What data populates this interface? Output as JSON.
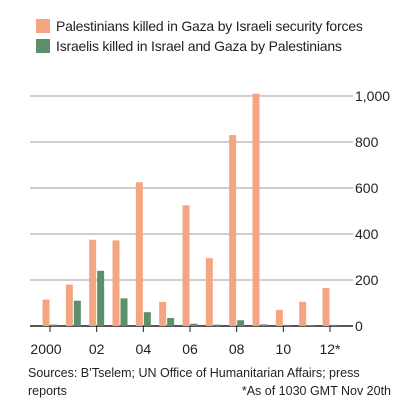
{
  "chart_data": {
    "type": "bar",
    "title": "",
    "xlabel": "",
    "ylabel": "",
    "categories": [
      "2000",
      "01",
      "02",
      "03",
      "04",
      "05",
      "06",
      "07",
      "08",
      "09",
      "10",
      "11",
      "12*"
    ],
    "x_tick_labels": [
      "2000",
      "02",
      "04",
      "06",
      "08",
      "10",
      "12*"
    ],
    "series": [
      {
        "name": "Palestinians killed in Gaza by Israeli security forces",
        "color": "#f4a582",
        "values": [
          115,
          180,
          375,
          372,
          625,
          105,
          525,
          295,
          830,
          1010,
          70,
          105,
          165
        ]
      },
      {
        "name": "Israelis killed in Israel and Gaza by Palestinians",
        "color": "#5e8f6b",
        "values": [
          6,
          110,
          240,
          120,
          60,
          35,
          10,
          6,
          25,
          7,
          5,
          4,
          5
        ]
      }
    ],
    "ylim": [
      0,
      1000
    ],
    "y_ticks": [
      0,
      200,
      400,
      600,
      800,
      1000
    ],
    "y_tick_labels": [
      "0",
      "200",
      "400",
      "600",
      "800",
      "1,000"
    ],
    "y_axis_position": "right",
    "grid": "horizontal",
    "legend_position": "top-left"
  },
  "notes": {
    "sources": "Sources: B’Tselem; UN Office of Humanitarian Affairs; press reports",
    "footnote": "*As of 1030 GMT Nov 20th"
  },
  "colors": {
    "gridline": "#9d9d9d",
    "baseline": "#231f20"
  }
}
